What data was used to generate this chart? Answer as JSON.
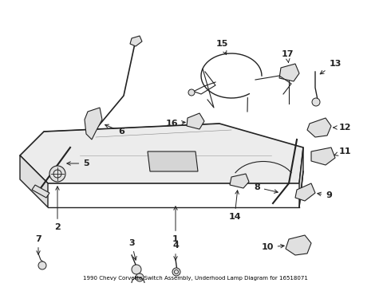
{
  "title": "1990 Chevy Corvette Switch Assembly, Underhood Lamp Diagram for 16518071",
  "bg": "#ffffff",
  "lc": "#222222",
  "fig_w": 4.9,
  "fig_h": 3.6,
  "dpi": 100
}
